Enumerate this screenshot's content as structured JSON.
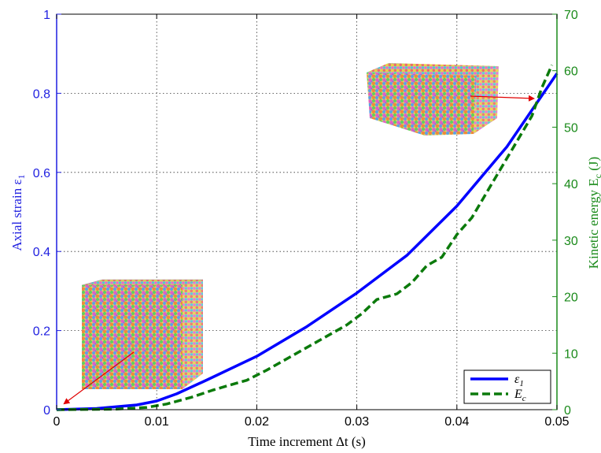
{
  "chart_data": {
    "type": "line",
    "xlabel": "Time increment Δt (s)",
    "ylabel": "Axial strain ε",
    "ylabel_sub": "1",
    "y2label": "Kinetic energy E",
    "y2label_sub": "c",
    "y2label_unit": " (J)",
    "xlim": [
      0,
      0.05
    ],
    "ylim": [
      0,
      1
    ],
    "y2lim": [
      0,
      70
    ],
    "xticks": [
      "0",
      "0.01",
      "0.02",
      "0.03",
      "0.04",
      "0.05"
    ],
    "yticks": [
      "0",
      "0.2",
      "0.4",
      "0.6",
      "0.8",
      "1"
    ],
    "y2ticks": [
      "0",
      "10",
      "20",
      "30",
      "40",
      "50",
      "60",
      "70"
    ],
    "grid": true,
    "legend_position": "bottom-right",
    "colors": {
      "left_axis": "#1f1fe0",
      "right_axis": "#1a8a1a",
      "strain": "#0000ff",
      "energy": "#0b7a0b",
      "arrow": "#e00000"
    },
    "series": [
      {
        "name": "ε",
        "name_sub": "1",
        "axis": "left",
        "style": "solid",
        "x": [
          0,
          0.004,
          0.008,
          0.01,
          0.012,
          0.015,
          0.02,
          0.025,
          0.03,
          0.035,
          0.04,
          0.045,
          0.05
        ],
        "values": [
          0,
          0.003,
          0.012,
          0.022,
          0.04,
          0.075,
          0.135,
          0.21,
          0.295,
          0.39,
          0.515,
          0.665,
          0.85
        ]
      },
      {
        "name": "E",
        "name_sub": "c",
        "axis": "right",
        "style": "dashed",
        "x": [
          0,
          0.006,
          0.009,
          0.011,
          0.0135,
          0.0155,
          0.017,
          0.019,
          0.021,
          0.0235,
          0.0255,
          0.0275,
          0.029,
          0.0305,
          0.032,
          0.034,
          0.0355,
          0.037,
          0.0385,
          0.04,
          0.0415,
          0.0435,
          0.0455,
          0.0475,
          0.0485,
          0.0495
        ],
        "values": [
          0,
          0.1,
          0.4,
          1.0,
          2.2,
          3.4,
          4.2,
          5.2,
          7.0,
          9.5,
          11.5,
          13.5,
          15.0,
          17.0,
          19.5,
          20.5,
          22.5,
          25.5,
          27.0,
          31.0,
          34.0,
          40.0,
          46.0,
          52.0,
          57.0,
          61.0
        ]
      }
    ]
  }
}
